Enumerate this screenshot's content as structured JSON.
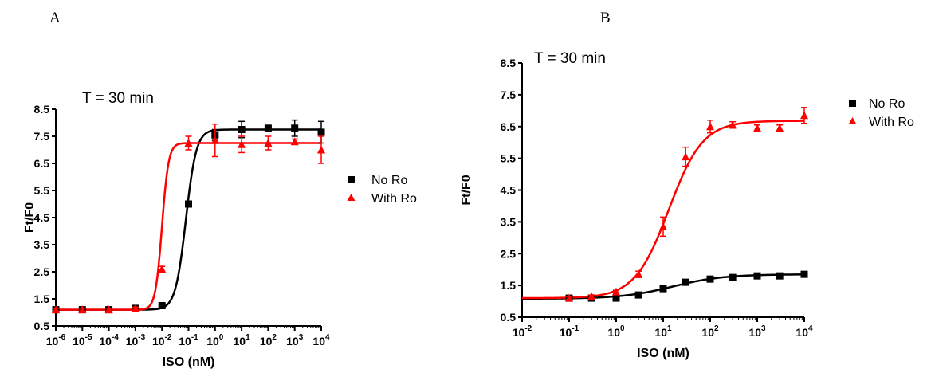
{
  "chart_data": [
    {
      "panel": "A",
      "type": "scatter",
      "annotation": "T = 30 min",
      "xlabel": "ISO (nM)",
      "ylabel": "Ft/F0",
      "xscale": "log",
      "xlim_exp": [
        -6,
        4
      ],
      "x_tick_exponents": [
        -6,
        -5,
        -4,
        -3,
        -2,
        -1,
        0,
        1,
        2,
        3,
        4
      ],
      "ylim": [
        0.5,
        8.5
      ],
      "y_ticks": [
        "0.5",
        "1.5",
        "2.5",
        "3.5",
        "4.5",
        "5.5",
        "6.5",
        "7.5",
        "8.5"
      ],
      "legend_position": "right",
      "series": [
        {
          "name": "No Ro",
          "color": "#000000",
          "marker": "square",
          "x": [
            1e-06,
            1e-05,
            0.0001,
            0.001,
            0.01,
            0.1,
            1,
            10,
            100,
            1000,
            10000
          ],
          "y": [
            1.1,
            1.1,
            1.1,
            1.15,
            1.25,
            5.0,
            7.55,
            7.75,
            7.8,
            7.8,
            7.65
          ],
          "err": [
            0.05,
            0.05,
            0.05,
            0.1,
            0.05,
            0.1,
            0.2,
            0.3,
            0.1,
            0.3,
            0.4
          ],
          "fit": {
            "bottom": 1.1,
            "top": 7.75,
            "logEC50": -1.1,
            "hill": 2.2
          }
        },
        {
          "name": "With Ro",
          "color": "#ff0000",
          "marker": "triangle",
          "x": [
            1e-06,
            1e-05,
            0.0001,
            0.001,
            0.01,
            0.1,
            1,
            10,
            100,
            1000,
            10000
          ],
          "y": [
            1.1,
            1.1,
            1.1,
            1.15,
            2.6,
            7.25,
            7.35,
            7.2,
            7.25,
            7.3,
            7.0
          ],
          "err": [
            0.05,
            0.05,
            0.05,
            0.05,
            0.1,
            0.25,
            0.6,
            0.3,
            0.25,
            0.1,
            0.5
          ],
          "fit": {
            "bottom": 1.1,
            "top": 7.25,
            "logEC50": -2.0,
            "hill": 3.5
          }
        }
      ]
    },
    {
      "panel": "B",
      "type": "scatter",
      "annotation": "T = 30 min",
      "xlabel": "ISO (nM)",
      "ylabel": "Ft/F0",
      "xscale": "log",
      "xlim_exp": [
        -2,
        4
      ],
      "x_tick_exponents": [
        -2,
        -1,
        0,
        1,
        2,
        3,
        4
      ],
      "ylim": [
        0.5,
        8.5
      ],
      "y_ticks": [
        "0.5",
        "1.5",
        "2.5",
        "3.5",
        "4.5",
        "5.5",
        "6.5",
        "7.5",
        "8.5"
      ],
      "legend_position": "right",
      "series": [
        {
          "name": "No Ro",
          "color": "#000000",
          "marker": "square",
          "x": [
            0.1,
            0.3,
            1,
            3,
            10,
            30,
            100,
            300,
            1000,
            3000,
            10000
          ],
          "y": [
            1.1,
            1.1,
            1.1,
            1.2,
            1.4,
            1.6,
            1.7,
            1.75,
            1.8,
            1.8,
            1.85
          ],
          "err": [
            0.05,
            0.05,
            0.05,
            0.05,
            0.05,
            0.05,
            0.05,
            0.05,
            0.05,
            0.05,
            0.05
          ],
          "fit": {
            "bottom": 1.08,
            "top": 1.85,
            "logEC50": 1.2,
            "hill": 0.8
          }
        },
        {
          "name": "With Ro",
          "color": "#ff0000",
          "marker": "triangle",
          "x": [
            0.1,
            0.3,
            1,
            3,
            10,
            30,
            100,
            300,
            1000,
            3000,
            10000
          ],
          "y": [
            1.1,
            1.15,
            1.3,
            1.85,
            3.35,
            5.55,
            6.5,
            6.55,
            6.45,
            6.45,
            6.85
          ],
          "err": [
            0.05,
            0.05,
            0.05,
            0.1,
            0.3,
            0.3,
            0.2,
            0.1,
            0.1,
            0.1,
            0.25
          ],
          "fit": {
            "bottom": 1.1,
            "top": 6.68,
            "logEC50": 1.12,
            "hill": 1.2
          }
        }
      ]
    }
  ]
}
